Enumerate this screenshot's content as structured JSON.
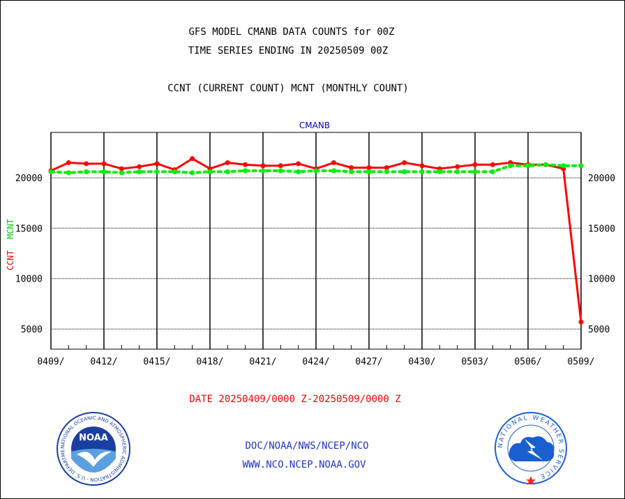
{
  "header": {
    "title_line1": "GFS MODEL CMANB DATA COUNTS for 00Z",
    "title_line2": "TIME SERIES ENDING IN 20250509 00Z",
    "subtitle": "CCNT (CURRENT COUNT) MCNT (MONTHLY COUNT)"
  },
  "chart_data": {
    "type": "line",
    "title": "CMANB",
    "ylabel_ccnt": "CCNT",
    "ylabel_mcnt": "MCNT",
    "ylim": [
      3000,
      24500
    ],
    "yticks": [
      5000,
      10000,
      15000,
      20000
    ],
    "grid": true,
    "xtick_labels": [
      "0409/",
      "0412/",
      "0415/",
      "0418/",
      "0421/",
      "0424/",
      "0427/",
      "0430/",
      "0503/",
      "0506/",
      "0509/"
    ],
    "x_dates": [
      "0409",
      "0410",
      "0411",
      "0412",
      "0413",
      "0414",
      "0415",
      "0416",
      "0417",
      "0418",
      "0419",
      "0420",
      "0421",
      "0422",
      "0423",
      "0424",
      "0425",
      "0426",
      "0427",
      "0428",
      "0429",
      "0430",
      "0501",
      "0502",
      "0503",
      "0504",
      "0505",
      "0506",
      "0507",
      "0508",
      "0509"
    ],
    "series": [
      {
        "name": "CCNT",
        "color": "#ff0000",
        "style": "solid",
        "values": [
          20700,
          21500,
          21400,
          21400,
          20900,
          21100,
          21400,
          20800,
          21900,
          20900,
          21500,
          21300,
          21200,
          21200,
          21400,
          20900,
          21500,
          21000,
          21000,
          21000,
          21500,
          21200,
          20900,
          21100,
          21300,
          21300,
          21500,
          21300,
          21300,
          20900,
          5700
        ]
      },
      {
        "name": "MCNT",
        "color": "#00ee00",
        "style": "dotted",
        "values": [
          20600,
          20500,
          20600,
          20600,
          20500,
          20600,
          20600,
          20600,
          20500,
          20600,
          20600,
          20700,
          20700,
          20700,
          20600,
          20700,
          20700,
          20600,
          20600,
          20600,
          20600,
          20600,
          20600,
          20600,
          20600,
          20600,
          21200,
          21200,
          21300,
          21200,
          21200
        ]
      }
    ]
  },
  "footer": {
    "date_range": "DATE 20250409/0000 Z-20250509/0000 Z",
    "org_path": "DOC/NOAA/NWS/NCEP/NCO",
    "website": "WWW.NCO.NCEP.NOAA.GOV",
    "noaa_logo_text": "NOAA",
    "noaa_ring_text": "NATIONAL OCEANIC AND ATMOSPHERIC ADMINISTRATION · U.S. DEPARTMENT OF COMMERCE ·",
    "nws_ring_text": "NATIONAL WEATHER SERVICE"
  },
  "colors": {
    "ccnt": "#ff0000",
    "mcnt": "#00ee00",
    "title_blue": "#0000cc",
    "noaa_blue": "#1a3fa0",
    "nws_blue": "#1a5fd0"
  }
}
